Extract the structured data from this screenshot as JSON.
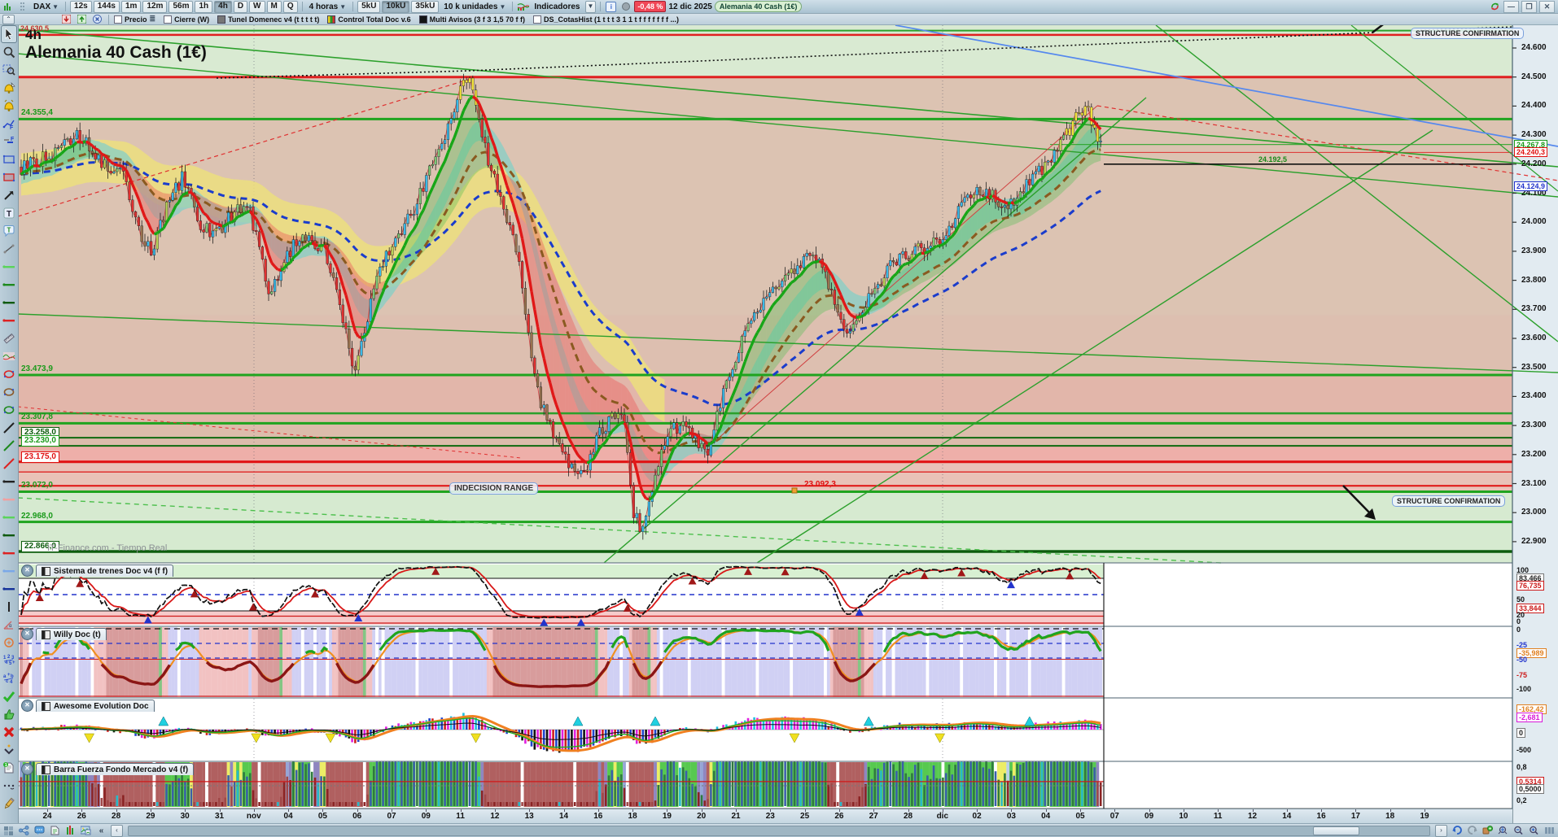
{
  "toolbar": {
    "instrument": "DAX",
    "timeframes": [
      "12s",
      "144s",
      "1m",
      "12m",
      "56m",
      "1h",
      "4h",
      "D",
      "W",
      "M",
      "Q"
    ],
    "active_timeframe": "4h",
    "period_label": "4 horas",
    "quantity_buttons": [
      "5kU",
      "10kU",
      "35kU"
    ],
    "active_quantity": "10kU",
    "quantity_label": "10 k unidades",
    "indicators_label": "Indicadores",
    "change_percent": "-0,48 %",
    "date_label": "12 dic 2025",
    "instrument_badge": "Alemania 40 Cash (1€)"
  },
  "overlay_bar": {
    "items": [
      {
        "label": "Precio",
        "type": "checkbox"
      },
      {
        "label": "Cierre (W)",
        "type": "checkbox"
      },
      {
        "label": "Tunel Domenec v4 (t t t t t)",
        "type": "swatch",
        "color": "#777777"
      },
      {
        "label": "Control Total Doc v.6",
        "type": "bars"
      },
      {
        "label": "Multi Avisos (3 f 3 1,5 70 f f)",
        "type": "swatch",
        "color": "#151515"
      },
      {
        "label": "DS_CotasHist (1 t t t 3 1 1 t f f f f f f f ...)",
        "type": "checkbox"
      }
    ]
  },
  "sidebar": {
    "tools": [
      "pointer",
      "zoom",
      "zoom-area",
      "alarm-add",
      "alarm",
      "fib-tool",
      "measure-tool",
      "rect-blue",
      "rect-red",
      "trend-arrow",
      "text",
      "note",
      "segment",
      "hline-lightgreen",
      "hline-green",
      "hline-darkgreen",
      "hline-red",
      "ruler",
      "mini-indicator",
      "ellipse-red",
      "ellipse-brown",
      "ellipse-green",
      "line-black",
      "line-green",
      "line-red",
      "hline2-black",
      "hline2-pink",
      "hline2-lightgreen",
      "hline2-darkgreen",
      "hline2-red",
      "hline2-lightblue",
      "hline2-darkblue",
      "vline",
      "angle",
      "circle-orange",
      "numbers",
      "letters",
      "check",
      "thumb-up",
      "delete-cross",
      "chevron-down",
      "doc-badge",
      "dots",
      "edit-pencil"
    ]
  },
  "chart": {
    "timeframe_label": "4h",
    "title": "Alemania 40 Cash (1€)",
    "watermark": "IT-Finance.com - Tiempo Real",
    "top_left_price": "24.630,5",
    "annotations": {
      "structure_confirmation_top": "STRUCTURE CONFIRMATION",
      "structure_confirmation_mid": "STRUCTURE CONFIRMATION",
      "indecision_range": "INDECISION RANGE",
      "swing_low_price": "23.092,3",
      "last_price_flag": "24.192,5"
    },
    "left_levels": [
      {
        "text": "24.355,4",
        "style": "green"
      },
      {
        "text": "23.473,9",
        "style": "green"
      },
      {
        "text": "23.307,8",
        "style": "green"
      },
      {
        "text": "23.258,0",
        "style": "darkgreen-box"
      },
      {
        "text": "23.230,0",
        "style": "green-box"
      },
      {
        "text": "23.175,0",
        "style": "red-box"
      },
      {
        "text": "23.072,0",
        "style": "green"
      },
      {
        "text": "22.968,0",
        "style": "green"
      },
      {
        "text": "22.866,0",
        "style": "darkgreen-box"
      }
    ],
    "axis_ticks": [
      "24.600",
      "24.500",
      "24.400",
      "24.300",
      "24.200",
      "24.100",
      "24.000",
      "23.900",
      "23.800",
      "23.700",
      "23.600",
      "23.500",
      "23.400",
      "23.300",
      "23.200",
      "23.100",
      "23.000",
      "22.900"
    ],
    "axis_boxes": [
      {
        "text": "24.267,8",
        "color": "green"
      },
      {
        "text": "24.240,3",
        "color": "red"
      },
      {
        "text": "24.124,9",
        "color": "blue"
      }
    ]
  },
  "panels": [
    {
      "title": "Sistema de trenes Doc v4 (f f)",
      "axis_labels": [
        {
          "text": "100"
        },
        {
          "text": "83,466",
          "box": "gray"
        },
        {
          "text": "76,735",
          "box": "red"
        },
        {
          "text": "50"
        },
        {
          "text": "33,844",
          "box": "red"
        },
        {
          "text": "20"
        },
        {
          "text": "0"
        }
      ]
    },
    {
      "title": "Willy Doc (t)",
      "axis_labels": [
        {
          "text": "0"
        },
        {
          "text": "-25",
          "color": "blue"
        },
        {
          "text": "-35,989",
          "box": "orange"
        },
        {
          "text": "-50",
          "color": "blue"
        },
        {
          "text": "-75",
          "color": "red"
        },
        {
          "text": "-100"
        }
      ]
    },
    {
      "title": "Awesome Evolution Doc",
      "axis_labels": [
        {
          "text": "-162,42",
          "box": "orange"
        },
        {
          "text": "-2,681",
          "box": "magenta"
        },
        {
          "text": "0",
          "box": "gray"
        },
        {
          "text": "-500"
        }
      ]
    },
    {
      "title": "Barra Fuerza Fondo Mercado v4 (f)",
      "axis_labels": [
        {
          "text": "0,8"
        },
        {
          "text": "0,5314",
          "box": "red"
        },
        {
          "text": "0,5000",
          "box": "gray"
        },
        {
          "text": "0,2"
        }
      ]
    }
  ],
  "x_axis": {
    "labels": [
      "24",
      "26",
      "28",
      "29",
      "30",
      "31",
      "nov",
      "04",
      "05",
      "06",
      "07",
      "09",
      "11",
      "12",
      "13",
      "14",
      "16",
      "18",
      "19",
      "20",
      "21",
      "23",
      "25",
      "26",
      "27",
      "28",
      "dic",
      "02",
      "03",
      "04",
      "05",
      "07",
      "09",
      "10",
      "11",
      "12",
      "14",
      "16",
      "17",
      "18",
      "19"
    ]
  },
  "status_bar": {
    "icons_left": [
      "windows-icon",
      "share-icon",
      "chat-icon",
      "file-icon",
      "columns-icon",
      "image-icon"
    ],
    "collapse_left": "«",
    "scroll_left": "‹",
    "scroll_right": "›",
    "icons_right": [
      "undo-icon",
      "redo-icon",
      "adjust-icon",
      "zoom-range-icon",
      "zoom-out-icon",
      "zoom-in-icon",
      "columns-view-icon"
    ]
  },
  "chart_data": {
    "type": "candlestick",
    "instrument": "Alemania 40 Cash (1€)",
    "timeframe": "4h",
    "visible_price_range": [
      22830,
      24690
    ],
    "key_levels": [
      24660,
      24645,
      24500,
      24355.4,
      23473.9,
      23342,
      23307.8,
      23258,
      23230,
      23175,
      23092.3,
      23072,
      22968,
      22866
    ],
    "current_prices": {
      "green_alert": 24267.8,
      "red_alert": 24240.3,
      "blue_last": 24124.9,
      "last_line": 24200
    },
    "price_path": [
      [
        26,
        24190
      ],
      [
        60,
        24230
      ],
      [
        95,
        24300
      ],
      [
        130,
        24190
      ],
      [
        150,
        24180
      ],
      [
        170,
        23980
      ],
      [
        185,
        23900
      ],
      [
        205,
        24050
      ],
      [
        225,
        24160
      ],
      [
        245,
        24000
      ],
      [
        262,
        23950
      ],
      [
        285,
        24030
      ],
      [
        305,
        24070
      ],
      [
        330,
        23760
      ],
      [
        350,
        23860
      ],
      [
        368,
        23960
      ],
      [
        385,
        23920
      ],
      [
        400,
        23900
      ],
      [
        418,
        23700
      ],
      [
        435,
        23480
      ],
      [
        452,
        23680
      ],
      [
        470,
        23860
      ],
      [
        490,
        23960
      ],
      [
        510,
        24060
      ],
      [
        530,
        24200
      ],
      [
        550,
        24330
      ],
      [
        565,
        24440
      ],
      [
        575,
        24500
      ],
      [
        588,
        24350
      ],
      [
        600,
        24210
      ],
      [
        612,
        24120
      ],
      [
        625,
        24000
      ],
      [
        640,
        23820
      ],
      [
        655,
        23480
      ],
      [
        668,
        23350
      ],
      [
        680,
        23270
      ],
      [
        695,
        23180
      ],
      [
        708,
        23120
      ],
      [
        722,
        23170
      ],
      [
        738,
        23280
      ],
      [
        755,
        23330
      ],
      [
        768,
        23310
      ],
      [
        778,
        22990
      ],
      [
        790,
        22940
      ],
      [
        800,
        23070
      ],
      [
        812,
        23200
      ],
      [
        825,
        23280
      ],
      [
        838,
        23300
      ],
      [
        850,
        23260
      ],
      [
        862,
        23220
      ],
      [
        872,
        23200
      ],
      [
        882,
        23360
      ],
      [
        895,
        23470
      ],
      [
        908,
        23560
      ],
      [
        922,
        23650
      ],
      [
        938,
        23730
      ],
      [
        955,
        23790
      ],
      [
        972,
        23840
      ],
      [
        988,
        23870
      ],
      [
        1002,
        23880
      ],
      [
        1015,
        23810
      ],
      [
        1028,
        23690
      ],
      [
        1040,
        23620
      ],
      [
        1052,
        23660
      ],
      [
        1065,
        23720
      ],
      [
        1078,
        23780
      ],
      [
        1092,
        23840
      ],
      [
        1108,
        23880
      ],
      [
        1125,
        23900
      ],
      [
        1142,
        23910
      ],
      [
        1158,
        23950
      ],
      [
        1175,
        24030
      ],
      [
        1192,
        24090
      ],
      [
        1208,
        24110
      ],
      [
        1222,
        24080
      ],
      [
        1238,
        24060
      ],
      [
        1252,
        24100
      ],
      [
        1268,
        24140
      ],
      [
        1282,
        24190
      ],
      [
        1296,
        24230
      ],
      [
        1310,
        24300
      ],
      [
        1322,
        24360
      ],
      [
        1334,
        24390
      ],
      [
        1344,
        24330
      ],
      [
        1352,
        24260
      ],
      [
        1358,
        24230
      ]
    ]
  }
}
